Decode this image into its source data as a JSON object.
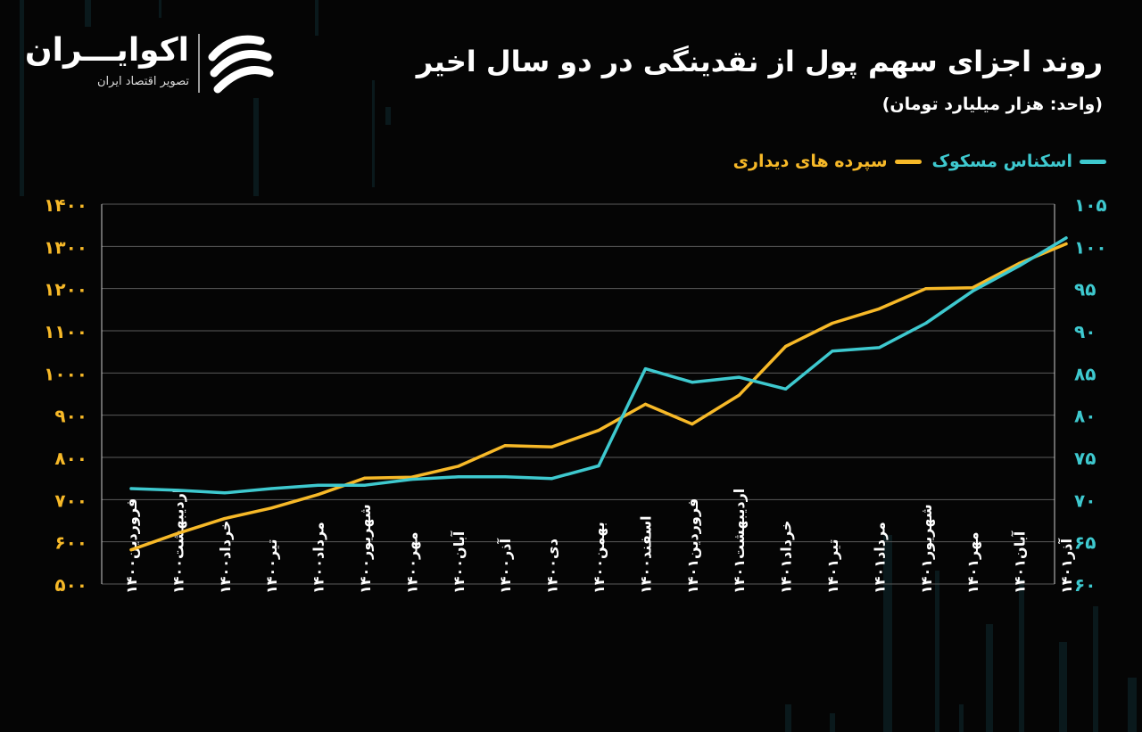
{
  "header": {
    "title": "روند اجزای سهم پول از نقدینگی در دو سال اخیر",
    "unit": "(واحد: هزار میلیارد تومان)"
  },
  "logo": {
    "name": "اکوایـــران",
    "subtitle": "تصویر اقتصاد ایران"
  },
  "colors": {
    "background": "#050505",
    "grid": "#5a5a5a",
    "deposits": "#f7b928",
    "cash": "#3ec9cf"
  },
  "chart_data": {
    "type": "line",
    "title": "روند اجزای سهم پول از نقدینگی در دو سال اخیر",
    "subtitle": "(واحد: هزار میلیارد تومان)",
    "categories": [
      "فروردین۱۴۰۰",
      "اردیبهشت۱۴۰۰",
      "خرداد۱۴۰۰",
      "تیر۱۴۰۰",
      "مرداد۱۴۰۰",
      "شهریور۱۴۰۰",
      "مهر۱۴۰۰",
      "آبان۱۴۰۰",
      "آذر۱۴۰۰",
      "دی۱۴۰۰",
      "بهمن۱۴۰۰",
      "اسفند۱۴۰۰",
      "فروردین۱۴۰۱",
      "اردیبهشت۱۴۰۱",
      "خرداد۱۴۰۱",
      "تیر۱۴۰۱",
      "مرداد۱۴۰۱",
      "شهریور۱۴۰۱",
      "مهر۱۴۰۱",
      "آبان۱۴۰۱",
      "آذر۱۴۰۱"
    ],
    "left_axis": {
      "ticks": [
        "۱۴۰۰",
        "۱۳۰۰",
        "۱۲۰۰",
        "۱۱۰۰",
        "۱۰۰۰",
        "۹۰۰",
        "۸۰۰",
        "۷۰۰",
        "۶۰۰",
        "۵۰۰"
      ],
      "ylim": [
        500,
        1400
      ]
    },
    "right_axis": {
      "ticks": [
        "۱۰۵",
        "۱۰۰",
        "۹۵",
        "۹۰",
        "۸۵",
        "۸۰",
        "۷۵",
        "۷۰",
        "۶۵",
        "۶۰"
      ],
      "ylim": [
        60,
        105
      ]
    },
    "series": [
      {
        "name": "سپرده های دیداری",
        "axis": "left",
        "color": "#f7b928",
        "values": [
          581,
          620,
          655,
          680,
          712,
          751,
          753,
          779,
          828,
          825,
          864,
          926,
          879,
          947,
          1063,
          1118,
          1152,
          1200,
          1202,
          1260,
          1306
        ]
      },
      {
        "name": "اسکناس مسکوک",
        "axis": "right",
        "color": "#3ec9cf",
        "values": [
          71.3,
          71.1,
          70.8,
          71.3,
          71.7,
          71.7,
          72.4,
          72.7,
          72.7,
          72.5,
          74.0,
          85.5,
          83.9,
          84.5,
          83.1,
          87.6,
          88.0,
          90.9,
          94.7,
          97.7,
          101.0
        ]
      }
    ],
    "grid": true,
    "legend_position": "top-right"
  }
}
